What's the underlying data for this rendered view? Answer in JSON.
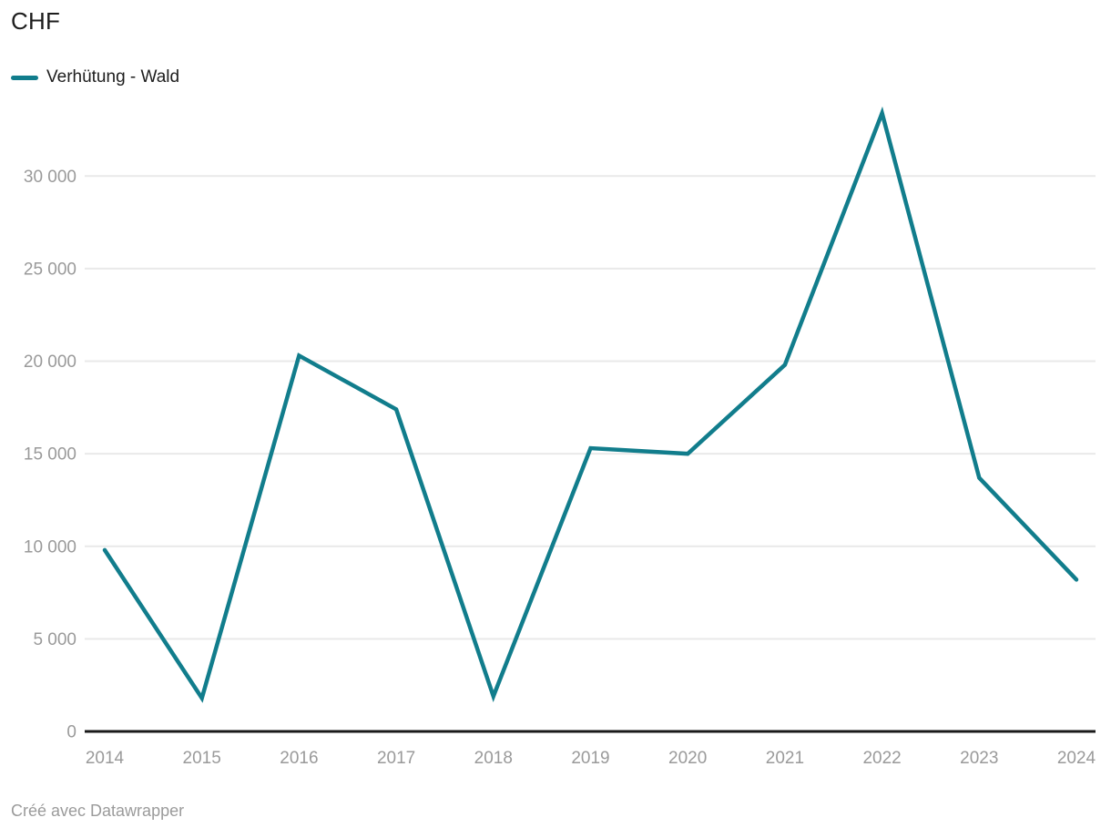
{
  "header": {
    "title": "CHF"
  },
  "legend": {
    "items": [
      {
        "label": "Verhütung - Wald",
        "color": "#117d8c"
      }
    ]
  },
  "footer": {
    "credit": "Créé avec Datawrapper"
  },
  "colors": {
    "line": "#117d8c",
    "grid": "#e9e9e9",
    "baseline": "#1a1a1a",
    "axis_text": "#9a9a9a",
    "title_text": "#1d1d1d"
  },
  "chart_data": {
    "type": "line",
    "title": "CHF",
    "categories": [
      "2014",
      "2015",
      "2016",
      "2017",
      "2018",
      "2019",
      "2020",
      "2021",
      "2022",
      "2023",
      "2024"
    ],
    "series": [
      {
        "name": "Verhütung - Wald",
        "color": "#117d8c",
        "values": [
          9800,
          1800,
          20300,
          17400,
          1900,
          15300,
          15000,
          19800,
          33400,
          13700,
          8200
        ]
      }
    ],
    "xlabel": "",
    "ylabel": "CHF",
    "ylim": [
      0,
      34000
    ],
    "yticks": [
      {
        "value": 0,
        "label": "0"
      },
      {
        "value": 5000,
        "label": "5 000"
      },
      {
        "value": 10000,
        "label": "10 000"
      },
      {
        "value": 15000,
        "label": "15 000"
      },
      {
        "value": 20000,
        "label": "20 000"
      },
      {
        "value": 25000,
        "label": "25 000"
      },
      {
        "value": 30000,
        "label": "30 000"
      }
    ],
    "grid": true,
    "legend_position": "top-left",
    "credit": "Créé avec Datawrapper"
  }
}
